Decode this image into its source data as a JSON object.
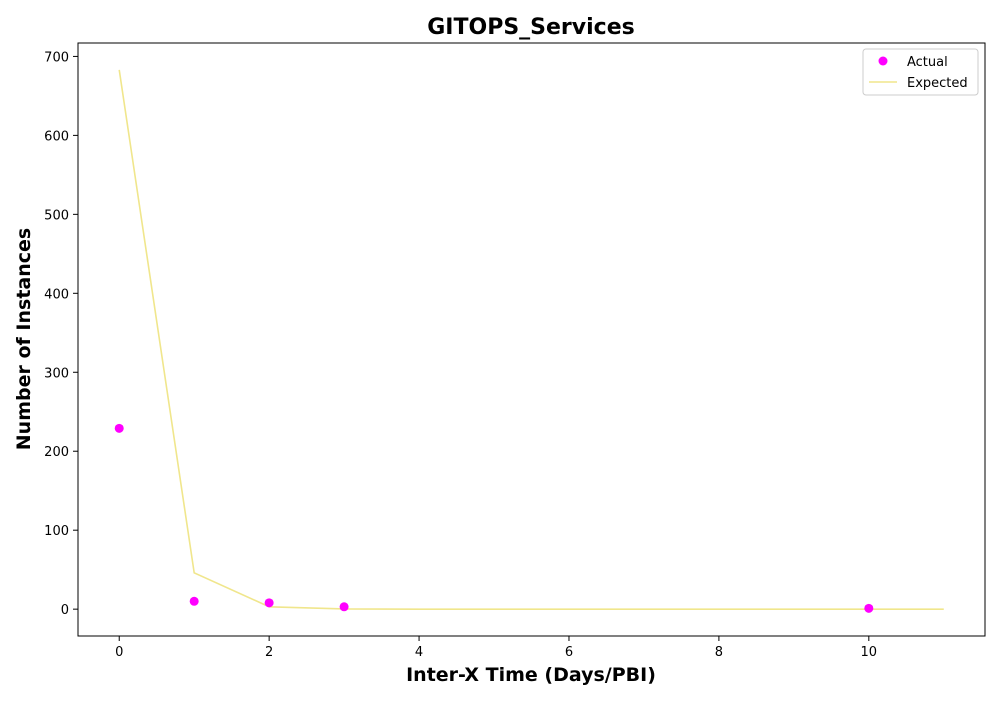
{
  "chart_data": {
    "type": "scatter",
    "title": "GITOPS_Services",
    "xlabel": "Inter-X Time (Days/PBI)",
    "ylabel": "Number of Instances",
    "xlim": [
      -0.55,
      11.55
    ],
    "ylim": [
      -34,
      717
    ],
    "xticks": [
      0,
      2,
      4,
      6,
      8,
      10
    ],
    "yticks": [
      0,
      100,
      200,
      300,
      400,
      500,
      600,
      700
    ],
    "grid": false,
    "legend_position": "top-right",
    "series": [
      {
        "name": "Actual",
        "kind": "scatter",
        "color": "#ff00ff",
        "points": [
          {
            "x": 0,
            "y": 229
          },
          {
            "x": 1,
            "y": 10
          },
          {
            "x": 2,
            "y": 8
          },
          {
            "x": 3,
            "y": 3
          },
          {
            "x": 10,
            "y": 1
          }
        ]
      },
      {
        "name": "Expected",
        "kind": "line",
        "color": "#f0e68c",
        "points": [
          {
            "x": 0,
            "y": 683
          },
          {
            "x": 1,
            "y": 46
          },
          {
            "x": 2,
            "y": 3
          },
          {
            "x": 3,
            "y": 0.3
          },
          {
            "x": 4,
            "y": 0
          },
          {
            "x": 5,
            "y": 0
          },
          {
            "x": 6,
            "y": 0
          },
          {
            "x": 7,
            "y": 0
          },
          {
            "x": 8,
            "y": 0
          },
          {
            "x": 9,
            "y": 0
          },
          {
            "x": 10,
            "y": 0
          },
          {
            "x": 11,
            "y": 0
          }
        ]
      }
    ]
  }
}
